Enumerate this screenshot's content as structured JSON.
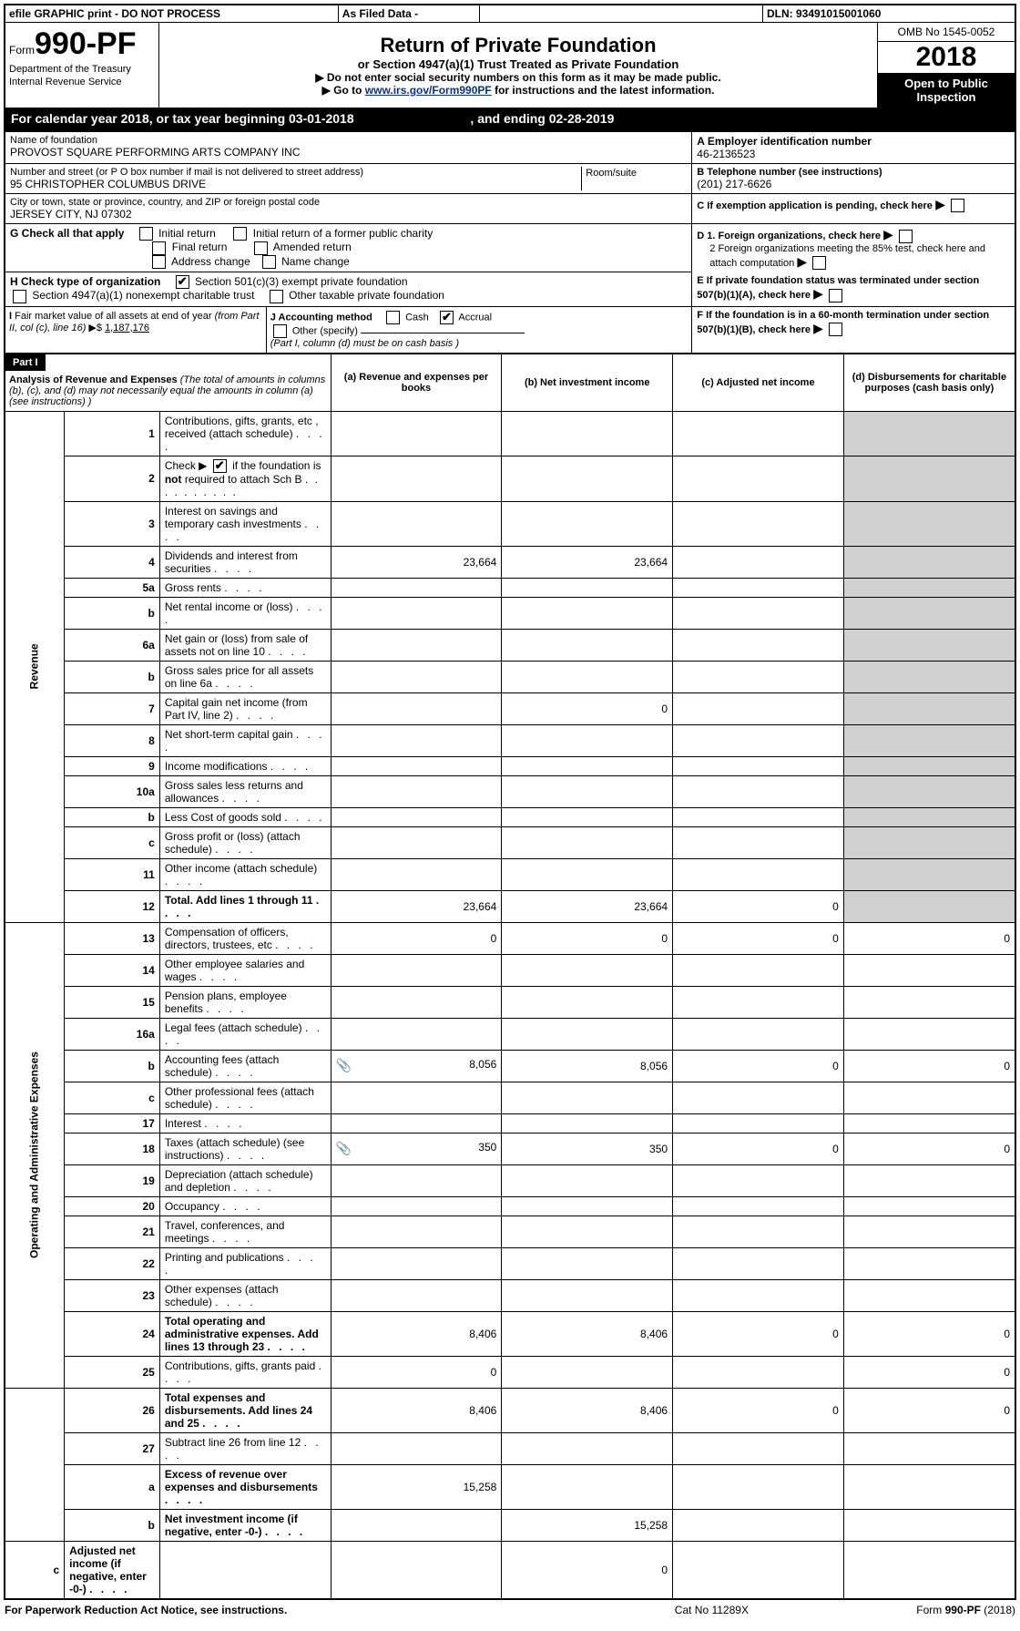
{
  "header": {
    "efile": "efile GRAPHIC print - DO NOT PROCESS",
    "as_filed": "As Filed Data -",
    "dln_label": "DLN:",
    "dln": "93491015001060",
    "form_word": "Form",
    "form_no": "990-PF",
    "dept1": "Department of the Treasury",
    "dept2": "Internal Revenue Service",
    "title": "Return of Private Foundation",
    "subtitle": "or Section 4947(a)(1) Trust Treated as Private Foundation",
    "note1": "▶ Do not enter social security numbers on this form as it may be made public.",
    "note2_pre": "▶ Go to ",
    "note2_link": "www.irs.gov/Form990PF",
    "note2_post": " for instructions and the latest information.",
    "omb": "OMB No 1545-0052",
    "year": "2018",
    "open_public": "Open to Public Inspection"
  },
  "calendar": {
    "prefix": "For calendar year 2018, or tax year beginning ",
    "begin": "03-01-2018",
    "mid": ", and ending ",
    "end": "02-28-2019"
  },
  "ident": {
    "name_label": "Name of foundation",
    "name": "PROVOST SQUARE PERFORMING ARTS COMPANY INC",
    "addr_label": "Number and street (or P O  box number if mail is not delivered to street address)",
    "addr": "95 CHRISTOPHER COLUMBUS DRIVE",
    "room_label": "Room/suite",
    "city_label": "City or town, state or province, country, and ZIP or foreign postal code",
    "city": "JERSEY CITY, NJ  07302",
    "A_label": "A Employer identification number",
    "A_val": "46-2136523",
    "B_label": "B Telephone number (see instructions)",
    "B_val": "(201) 217-6626",
    "C_label": "C If exemption application is pending, check here",
    "D1": "D 1. Foreign organizations, check here",
    "D2": "2 Foreign organizations meeting the 85% test, check here and attach computation",
    "E": "E  If private foundation status was terminated under section 507(b)(1)(A), check here",
    "F": "F  If the foundation is in a 60-month termination under section 507(b)(1)(B), check here"
  },
  "G": {
    "label": "G Check all that apply",
    "opts": [
      "Initial return",
      "Initial return of a former public charity",
      "Final return",
      "Amended return",
      "Address change",
      "Name change"
    ]
  },
  "H": {
    "label": "H Check type of organization",
    "opt1": "Section 501(c)(3) exempt private foundation",
    "opt2": "Section 4947(a)(1) nonexempt charitable trust",
    "opt3": "Other taxable private foundation"
  },
  "I": {
    "label": "I Fair market value of all assets at end of year (from Part II, col  (c), line 16) ▶$",
    "val": "1,187,176"
  },
  "J": {
    "label": "J Accounting method",
    "cash": "Cash",
    "accrual": "Accrual",
    "other": "Other (specify)",
    "note": "(Part I, column (d) must be on cash basis )"
  },
  "part1": {
    "part_label": "Part I",
    "heading": "Analysis of Revenue and Expenses",
    "heading_note": " (The total of amounts in columns (b), (c), and (d) may not necessarily equal the amounts in column (a) (see instructions) )",
    "cols": {
      "a": "(a) Revenue and expenses per books",
      "b": "(b) Net investment income",
      "c": "(c) Adjusted net income",
      "d": "(d) Disbursements for charitable purposes (cash basis only)"
    },
    "side_revenue": "Revenue",
    "side_expenses": "Operating and Administrative Expenses",
    "rows": [
      {
        "n": "1",
        "d": "Contributions, gifts, grants, etc , received (attach schedule)"
      },
      {
        "n": "2",
        "d": "Check ▶ ☑ if the foundation is not required to attach Sch  B",
        "d_pre": "Check ▶",
        "d_post": "if the foundation is ",
        "d_bold": "not",
        "d_post2": " required to attach Sch  B"
      },
      {
        "n": "3",
        "d": "Interest on savings and temporary cash investments"
      },
      {
        "n": "4",
        "d": "Dividends and interest from securities",
        "a": "23,664",
        "b": "23,664"
      },
      {
        "n": "5a",
        "d": "Gross rents"
      },
      {
        "n": "b",
        "d": "Net rental income or (loss)"
      },
      {
        "n": "6a",
        "d": "Net gain or (loss) from sale of assets not on line 10"
      },
      {
        "n": "b",
        "d": "Gross sales price for all assets on line 6a"
      },
      {
        "n": "7",
        "d": "Capital gain net income (from Part IV, line 2)",
        "b": "0"
      },
      {
        "n": "8",
        "d": "Net short-term capital gain"
      },
      {
        "n": "9",
        "d": "Income modifications"
      },
      {
        "n": "10a",
        "d": "Gross sales less returns and allowances"
      },
      {
        "n": "b",
        "d": "Less  Cost of goods sold"
      },
      {
        "n": "c",
        "d": "Gross profit or (loss) (attach schedule)"
      },
      {
        "n": "11",
        "d": "Other income (attach schedule)"
      },
      {
        "n": "12",
        "d": "Total. Add lines 1 through 11",
        "bold": true,
        "a": "23,664",
        "b": "23,664",
        "c": "0"
      },
      {
        "n": "13",
        "d": "Compensation of officers, directors, trustees, etc",
        "a": "0",
        "b": "0",
        "c": "0",
        "dcol": "0"
      },
      {
        "n": "14",
        "d": "Other employee salaries and wages"
      },
      {
        "n": "15",
        "d": "Pension plans, employee benefits"
      },
      {
        "n": "16a",
        "d": "Legal fees (attach schedule)"
      },
      {
        "n": "b",
        "d": "Accounting fees (attach schedule)",
        "icon": true,
        "a": "8,056",
        "b": "8,056",
        "c": "0",
        "dcol": "0"
      },
      {
        "n": "c",
        "d": "Other professional fees (attach schedule)"
      },
      {
        "n": "17",
        "d": "Interest"
      },
      {
        "n": "18",
        "d": "Taxes (attach schedule) (see instructions)",
        "icon": true,
        "a": "350",
        "b": "350",
        "c": "0",
        "dcol": "0"
      },
      {
        "n": "19",
        "d": "Depreciation (attach schedule) and depletion"
      },
      {
        "n": "20",
        "d": "Occupancy"
      },
      {
        "n": "21",
        "d": "Travel, conferences, and meetings"
      },
      {
        "n": "22",
        "d": "Printing and publications"
      },
      {
        "n": "23",
        "d": "Other expenses (attach schedule)"
      },
      {
        "n": "24",
        "d": "Total operating and administrative expenses. Add lines 13 through 23",
        "bold": true,
        "a": "8,406",
        "b": "8,406",
        "c": "0",
        "dcol": "0"
      },
      {
        "n": "25",
        "d": "Contributions, gifts, grants paid",
        "a": "0",
        "dcol": "0"
      },
      {
        "n": "26",
        "d": "Total expenses and disbursements. Add lines 24 and 25",
        "bold": true,
        "a": "8,406",
        "b": "8,406",
        "c": "0",
        "dcol": "0"
      },
      {
        "n": "27",
        "d": "Subtract line 26 from line 12"
      },
      {
        "n": "a",
        "d": "Excess of revenue over expenses and disbursements",
        "bold": true,
        "a": "15,258"
      },
      {
        "n": "b",
        "d": "Net investment income (if negative, enter -0-)",
        "bold": true,
        "b": "15,258"
      },
      {
        "n": "c",
        "d": "Adjusted net income (if negative, enter -0-)",
        "bold": true,
        "c": "0"
      }
    ]
  },
  "footer": {
    "left": "For Paperwork Reduction Act Notice, see instructions.",
    "mid": "Cat  No  11289X",
    "right": "Form 990-PF (2018)",
    "right_bold": "990-PF"
  }
}
